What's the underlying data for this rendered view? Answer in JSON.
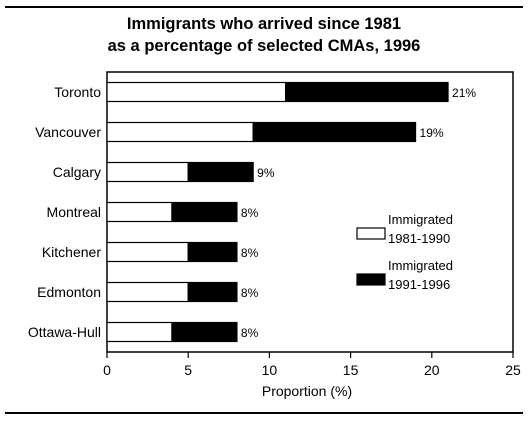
{
  "chart_data": {
    "type": "bar",
    "orientation": "horizontal",
    "stacked": true,
    "title": "Immigrants who arrived since 1981",
    "subtitle": "as a percentage of selected CMAs, 1996",
    "xlabel": "Proportion (%)",
    "ylabel": "",
    "xlim": [
      0,
      25
    ],
    "xticks": [
      "0",
      "5",
      "10",
      "15",
      "20",
      "25"
    ],
    "categories": [
      "Toronto",
      "Vancouver",
      "Calgary",
      "Montreal",
      "Kitchener",
      "Edmonton",
      "Ottawa-Hull"
    ],
    "series": [
      {
        "name": "Immigrated 1981-1990",
        "values": [
          11,
          9,
          5,
          4,
          5,
          5,
          4
        ],
        "color": "#ffffff"
      },
      {
        "name": "Immigrated 1991-1996",
        "values": [
          10,
          10,
          4,
          4,
          3,
          3,
          4
        ],
        "color": "#000000"
      }
    ],
    "total_labels": [
      "21%",
      "19%",
      "9%",
      "8%",
      "8%",
      "8%",
      "8%"
    ],
    "legend": {
      "position": "right",
      "items": [
        {
          "lines": [
            "Immigrated",
            "1981-1990"
          ],
          "color": "#ffffff"
        },
        {
          "lines": [
            "Immigrated",
            "1991-1996"
          ],
          "color": "#000000"
        }
      ]
    },
    "grid": false
  }
}
